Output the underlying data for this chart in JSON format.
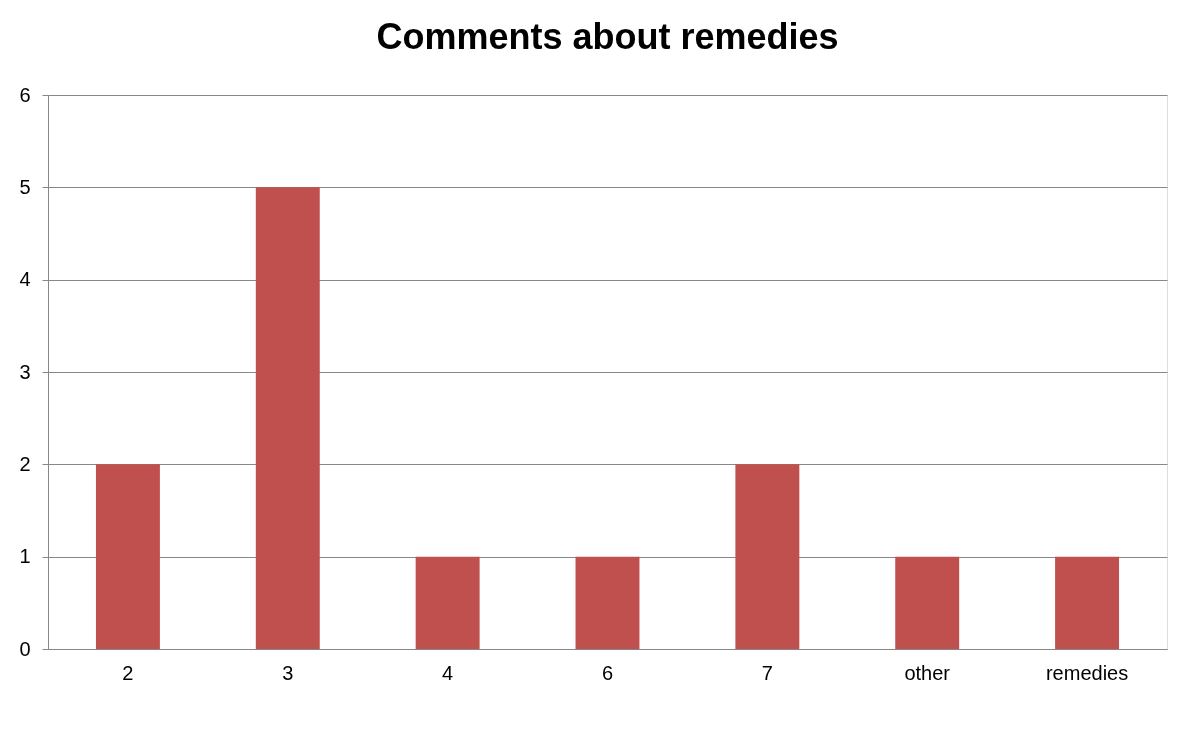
{
  "chart_data": {
    "type": "bar",
    "title": "Comments about remedies",
    "categories": [
      "2",
      "3",
      "4",
      "6",
      "7",
      "other",
      "remedies"
    ],
    "values": [
      2,
      5,
      1,
      1,
      2,
      1,
      1
    ],
    "color": "#c0504d",
    "ylim": [
      0,
      6
    ],
    "yticks": [
      0,
      1,
      2,
      3,
      4,
      5,
      6
    ],
    "grid": "y"
  }
}
